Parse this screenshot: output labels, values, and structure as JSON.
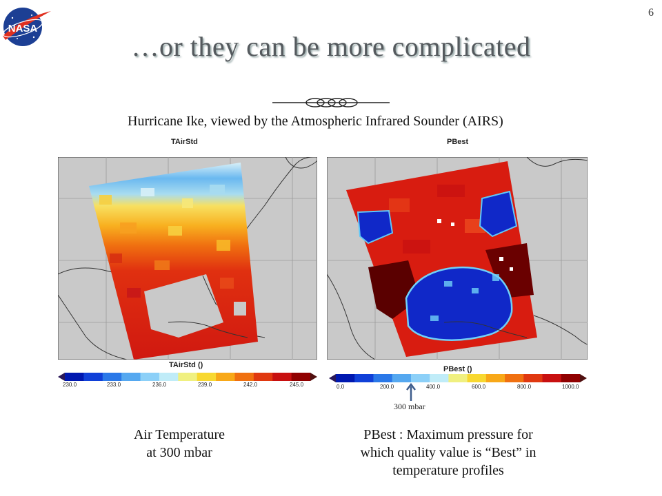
{
  "slide": {
    "page_number": "6",
    "title": "…or they can be more complicated",
    "subtitle": "Hurricane Ike, viewed by the Atmospheric Infrared Sounder (AIRS)",
    "logo_text": "NASA"
  },
  "left_panel": {
    "title": "TAirStd",
    "colorbar_title": "TAirStd ()",
    "ticks": [
      "230.0",
      "233.0",
      "236.0",
      "239.0",
      "242.0",
      "245.0"
    ],
    "caption_line1": "Air Temperature",
    "caption_line2": "at 300 mbar"
  },
  "right_panel": {
    "title": "PBest",
    "colorbar_title": "PBest ()",
    "ticks": [
      "0.0",
      "200.0",
      "400.0",
      "600.0",
      "800.0",
      "1000.0"
    ],
    "annotation": "300 mbar",
    "caption_line1": "PBest : Maximum pressure for",
    "caption_line2": "which quality value is “Best” in",
    "caption_line3": "temperature profiles"
  },
  "colors": {
    "land": "#c8c8c8",
    "title_text": "#555a5e",
    "arrow": "#3d5c8c",
    "colorbar": [
      "#0018b0",
      "#1040d8",
      "#2a78e8",
      "#55a8f0",
      "#8cd0f8",
      "#c0ecf8",
      "#f0f080",
      "#f8d830",
      "#f8a818",
      "#f07010",
      "#e03810",
      "#c81010",
      "#900000"
    ]
  }
}
